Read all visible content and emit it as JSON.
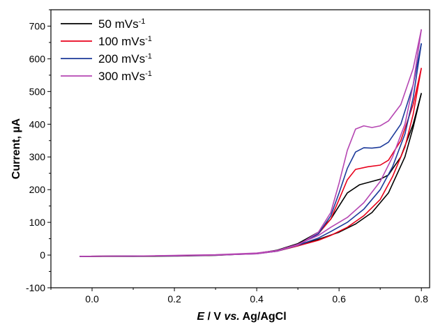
{
  "chart_data": {
    "type": "line",
    "xlabel": {
      "italic": "E",
      "plain1": " / V ",
      "italic2": "vs.",
      "plain2": " Ag/AgCl"
    },
    "ylabel": "Current, µA",
    "xlim": [
      -0.1,
      0.82
    ],
    "ylim": [
      -100,
      750
    ],
    "x_ticks": [
      0.0,
      0.2,
      0.4,
      0.6,
      0.8
    ],
    "x_tick_labels": [
      "0.0",
      "0.2",
      "0.4",
      "0.6",
      "0.8"
    ],
    "y_ticks": [
      -100,
      0,
      100,
      200,
      300,
      400,
      500,
      600,
      700
    ],
    "y_tick_labels": [
      "-100",
      "0",
      "100",
      "200",
      "300",
      "400",
      "500",
      "600",
      "700"
    ],
    "grid": false,
    "legend_position": "top-left",
    "series": [
      {
        "name": "50 mVs",
        "superscript": "-1",
        "color": "#000000",
        "forward": [
          [
            -0.03,
            -4
          ],
          [
            0.1,
            -4
          ],
          [
            0.2,
            -3
          ],
          [
            0.3,
            -1
          ],
          [
            0.4,
            5
          ],
          [
            0.45,
            15
          ],
          [
            0.5,
            35
          ],
          [
            0.55,
            70
          ],
          [
            0.58,
            110
          ],
          [
            0.6,
            150
          ],
          [
            0.62,
            190
          ],
          [
            0.65,
            215
          ],
          [
            0.68,
            225
          ],
          [
            0.7,
            232
          ],
          [
            0.72,
            245
          ],
          [
            0.75,
            300
          ],
          [
            0.78,
            400
          ],
          [
            0.8,
            495
          ]
        ],
        "reverse": [
          [
            0.8,
            495
          ],
          [
            0.78,
            390
          ],
          [
            0.76,
            300
          ],
          [
            0.72,
            190
          ],
          [
            0.68,
            130
          ],
          [
            0.64,
            95
          ],
          [
            0.6,
            70
          ],
          [
            0.55,
            48
          ],
          [
            0.5,
            28
          ],
          [
            0.45,
            12
          ],
          [
            0.4,
            5
          ],
          [
            0.3,
            0
          ],
          [
            0.2,
            -2
          ],
          [
            0.1,
            -3
          ],
          [
            -0.03,
            -4
          ]
        ]
      },
      {
        "name": "100 mVs",
        "superscript": "-1",
        "color": "#e8001b",
        "forward": [
          [
            -0.03,
            -4
          ],
          [
            0.1,
            -3
          ],
          [
            0.2,
            -2
          ],
          [
            0.3,
            0
          ],
          [
            0.4,
            5
          ],
          [
            0.45,
            13
          ],
          [
            0.5,
            30
          ],
          [
            0.55,
            65
          ],
          [
            0.58,
            110
          ],
          [
            0.6,
            170
          ],
          [
            0.62,
            230
          ],
          [
            0.64,
            262
          ],
          [
            0.67,
            270
          ],
          [
            0.7,
            275
          ],
          [
            0.72,
            290
          ],
          [
            0.75,
            350
          ],
          [
            0.78,
            460
          ],
          [
            0.8,
            572
          ]
        ],
        "reverse": [
          [
            0.8,
            572
          ],
          [
            0.78,
            430
          ],
          [
            0.76,
            330
          ],
          [
            0.73,
            240
          ],
          [
            0.7,
            170
          ],
          [
            0.66,
            120
          ],
          [
            0.62,
            85
          ],
          [
            0.58,
            60
          ],
          [
            0.55,
            45
          ],
          [
            0.5,
            28
          ],
          [
            0.45,
            12
          ],
          [
            0.4,
            5
          ],
          [
            0.3,
            0
          ],
          [
            0.2,
            -2
          ],
          [
            0.1,
            -3
          ],
          [
            -0.03,
            -4
          ]
        ]
      },
      {
        "name": "200 mVs",
        "superscript": "-1",
        "color": "#1c3a9a",
        "forward": [
          [
            -0.03,
            -4
          ],
          [
            0.1,
            -3
          ],
          [
            0.2,
            -2
          ],
          [
            0.3,
            0
          ],
          [
            0.4,
            4
          ],
          [
            0.45,
            12
          ],
          [
            0.5,
            30
          ],
          [
            0.55,
            65
          ],
          [
            0.58,
            120
          ],
          [
            0.6,
            190
          ],
          [
            0.62,
            265
          ],
          [
            0.64,
            315
          ],
          [
            0.66,
            328
          ],
          [
            0.68,
            327
          ],
          [
            0.7,
            330
          ],
          [
            0.72,
            345
          ],
          [
            0.75,
            400
          ],
          [
            0.78,
            520
          ],
          [
            0.8,
            647
          ]
        ],
        "reverse": [
          [
            0.8,
            647
          ],
          [
            0.78,
            480
          ],
          [
            0.76,
            370
          ],
          [
            0.73,
            270
          ],
          [
            0.7,
            200
          ],
          [
            0.66,
            140
          ],
          [
            0.62,
            100
          ],
          [
            0.58,
            72
          ],
          [
            0.55,
            52
          ],
          [
            0.5,
            30
          ],
          [
            0.45,
            12
          ],
          [
            0.4,
            5
          ],
          [
            0.3,
            0
          ],
          [
            0.2,
            -2
          ],
          [
            0.1,
            -3
          ],
          [
            -0.03,
            -4
          ]
        ]
      },
      {
        "name": "300 mVs",
        "superscript": "-1",
        "color": "#b546b2",
        "forward": [
          [
            -0.03,
            -4
          ],
          [
            0.1,
            -3
          ],
          [
            0.2,
            -2
          ],
          [
            0.3,
            0
          ],
          [
            0.4,
            4
          ],
          [
            0.45,
            12
          ],
          [
            0.5,
            30
          ],
          [
            0.55,
            70
          ],
          [
            0.58,
            130
          ],
          [
            0.6,
            220
          ],
          [
            0.62,
            320
          ],
          [
            0.64,
            385
          ],
          [
            0.66,
            395
          ],
          [
            0.68,
            390
          ],
          [
            0.7,
            395
          ],
          [
            0.72,
            410
          ],
          [
            0.75,
            460
          ],
          [
            0.78,
            570
          ],
          [
            0.8,
            690
          ]
        ],
        "reverse": [
          [
            0.8,
            690
          ],
          [
            0.78,
            520
          ],
          [
            0.76,
            400
          ],
          [
            0.73,
            300
          ],
          [
            0.7,
            225
          ],
          [
            0.66,
            160
          ],
          [
            0.62,
            115
          ],
          [
            0.58,
            85
          ],
          [
            0.55,
            60
          ],
          [
            0.5,
            33
          ],
          [
            0.45,
            14
          ],
          [
            0.4,
            6
          ],
          [
            0.3,
            1
          ],
          [
            0.2,
            -1
          ],
          [
            0.1,
            -3
          ],
          [
            -0.03,
            -4
          ]
        ]
      }
    ]
  }
}
